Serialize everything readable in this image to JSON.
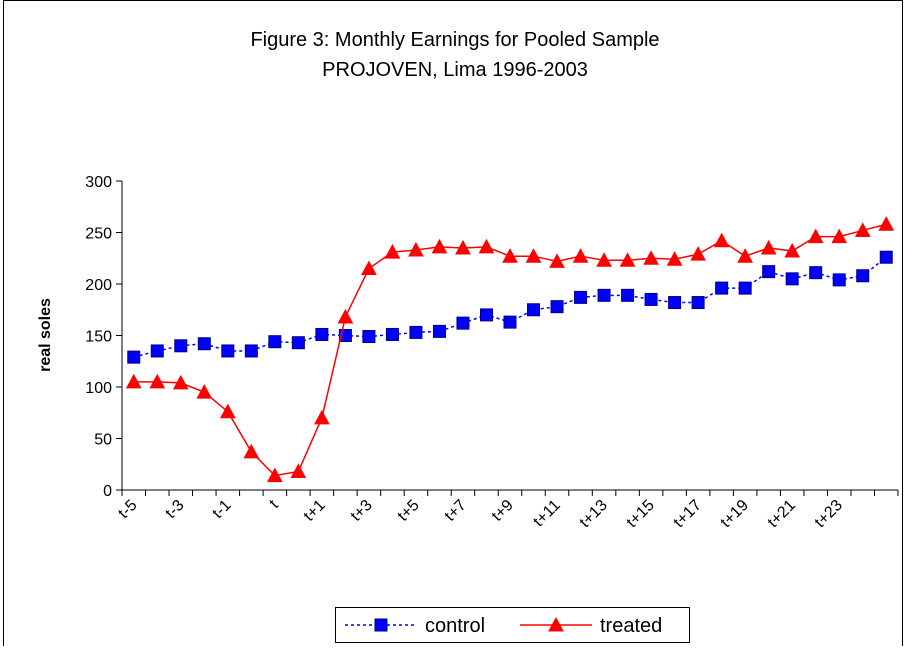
{
  "chart_data": {
    "type": "line",
    "title": "Figure 3: Monthly Earnings for Pooled Sample",
    "subtitle": "PROJOVEN, Lima 1996-2003",
    "y_label": "real soles",
    "categories": [
      "t-5",
      null,
      "t-3",
      null,
      "t-1",
      null,
      "t",
      null,
      "t+1",
      null,
      "t+3",
      null,
      "t+5",
      null,
      "t+7",
      null,
      "t+9",
      null,
      "t+11",
      null,
      "t+13",
      null,
      "t+15",
      null,
      "t+17",
      null,
      "t+19",
      null,
      "t+21",
      null,
      "t+23",
      null,
      null
    ],
    "series": [
      {
        "name": "control",
        "color": "#0000ff",
        "dash": true,
        "marker": "square",
        "values": [
          129,
          135,
          140,
          142,
          135,
          135,
          144,
          143,
          151,
          150,
          149,
          151,
          153,
          154,
          162,
          170,
          163,
          175,
          178,
          187,
          189,
          189,
          185,
          182,
          182,
          196,
          196,
          212,
          205,
          211,
          204,
          208,
          226
        ]
      },
      {
        "name": "treated",
        "color": "#ff0000",
        "dash": false,
        "marker": "triangle",
        "values": [
          105,
          105,
          104,
          95,
          76,
          37,
          14,
          18,
          70,
          168,
          215,
          231,
          233,
          236,
          235,
          236,
          227,
          227,
          222,
          227,
          223,
          223,
          225,
          224,
          229,
          242,
          227,
          235,
          232,
          246,
          246,
          252,
          258
        ]
      }
    ],
    "ylim": [
      0,
      300
    ],
    "yticks": [
      0,
      50,
      100,
      150,
      200,
      250,
      300
    ],
    "grid": false,
    "legend": "bottom"
  }
}
